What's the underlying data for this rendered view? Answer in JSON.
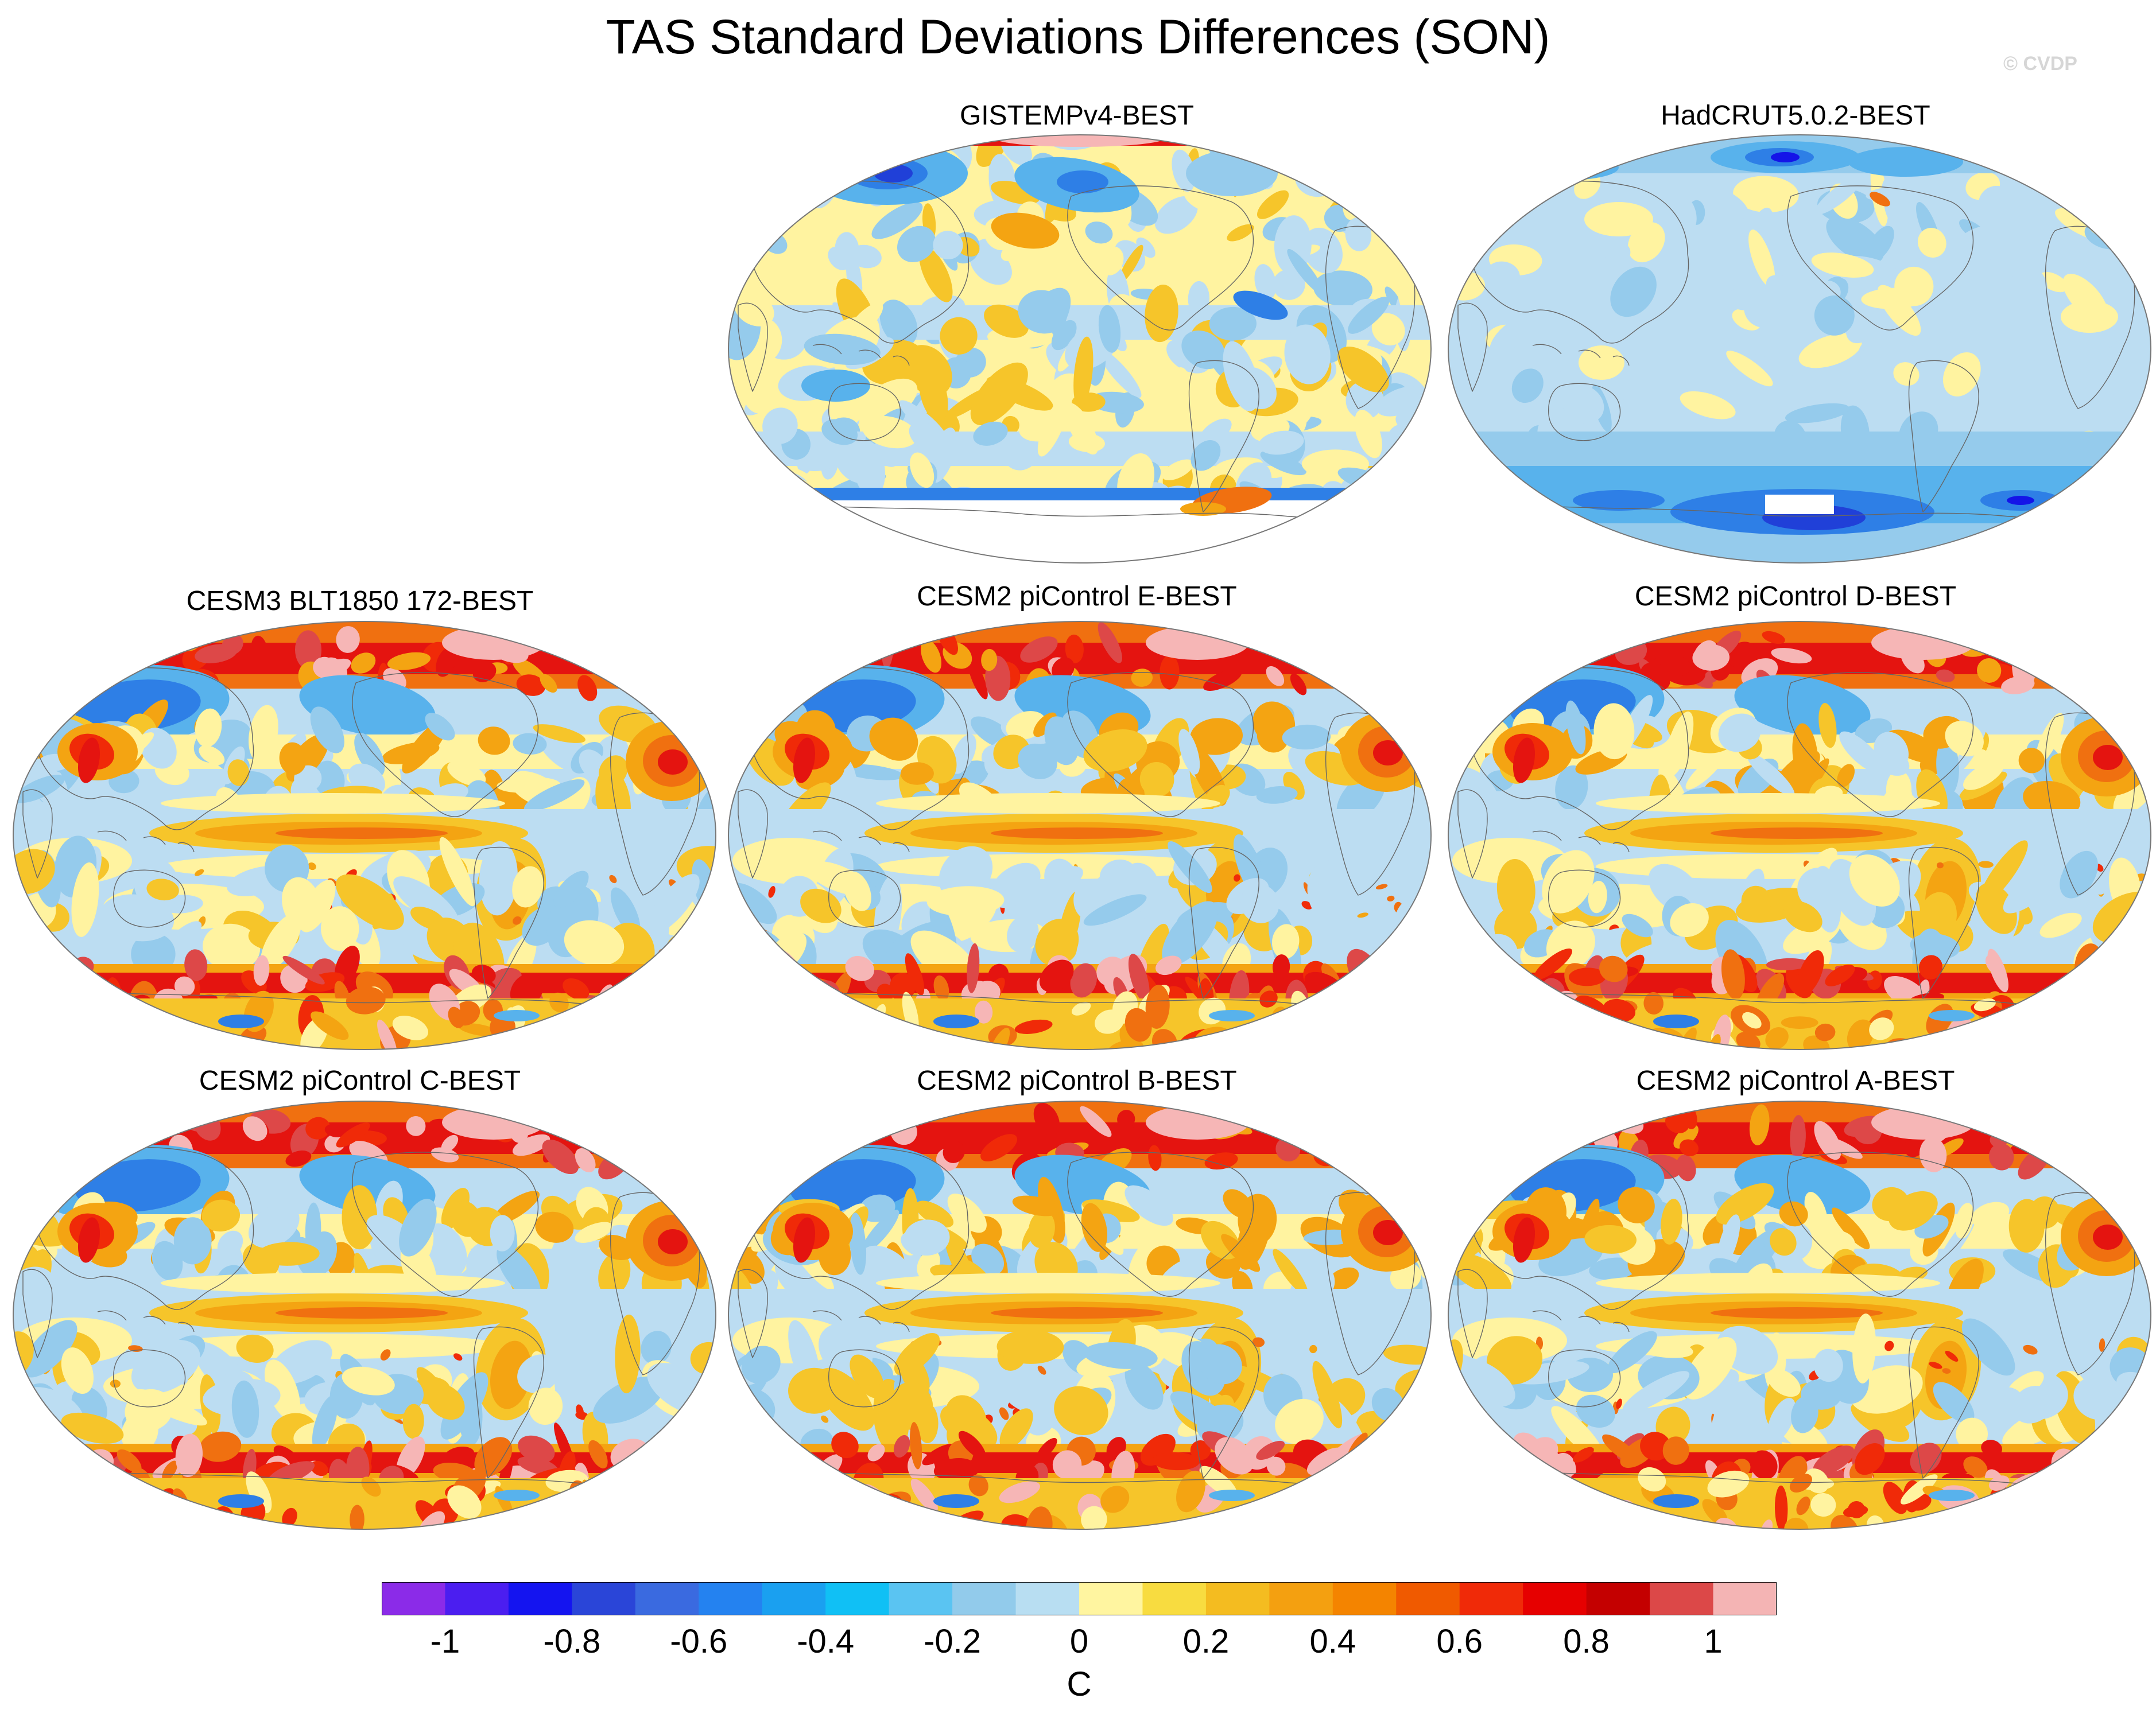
{
  "figure": {
    "title": "TAS Standard Deviations Differences (SON)",
    "watermark": "© CVDP"
  },
  "panels": [
    {
      "id": "gistemp",
      "title": "GISTEMPv4-BEST",
      "style": "obs-mixed"
    },
    {
      "id": "hadcrut",
      "title": "HadCRUT5.0.2-BEST",
      "style": "obs-cool"
    },
    {
      "id": "cesm3",
      "title": "CESM3 BLT1850 172-BEST",
      "style": "model"
    },
    {
      "id": "cesm2e",
      "title": "CESM2 piControl E-BEST",
      "style": "model"
    },
    {
      "id": "cesm2d",
      "title": "CESM2 piControl D-BEST",
      "style": "model"
    },
    {
      "id": "cesm2c",
      "title": "CESM2 piControl C-BEST",
      "style": "model"
    },
    {
      "id": "cesm2b",
      "title": "CESM2 piControl B-BEST",
      "style": "model"
    },
    {
      "id": "cesm2a",
      "title": "CESM2 piControl A-BEST",
      "style": "model"
    }
  ],
  "colorbar": {
    "units": "C",
    "levels": [
      -1.1,
      -1.0,
      -0.9,
      -0.8,
      -0.7,
      -0.6,
      -0.5,
      -0.4,
      -0.3,
      -0.2,
      -0.1,
      0.0,
      0.1,
      0.2,
      0.3,
      0.4,
      0.5,
      0.6,
      0.7,
      0.8,
      0.9,
      1.0,
      1.1
    ],
    "tick_labels": [
      "-1",
      "-0.8",
      "-0.6",
      "-0.4",
      "-0.2",
      "0",
      "0.2",
      "0.4",
      "0.6",
      "0.8",
      "1"
    ],
    "colors": [
      "#8B2BE8",
      "#4B1EF0",
      "#1414F0",
      "#2A45D8",
      "#3A6AE0",
      "#2482F0",
      "#1AA0F0",
      "#10C0F5",
      "#5AC4F2",
      "#92CBEB",
      "#B8DEF2",
      "#FFF5A0",
      "#F8DC40",
      "#F4BC20",
      "#F4A010",
      "#F48400",
      "#F05A00",
      "#F02A08",
      "#E60000",
      "#C40000",
      "#DC4848",
      "#F4B4B4"
    ]
  }
}
